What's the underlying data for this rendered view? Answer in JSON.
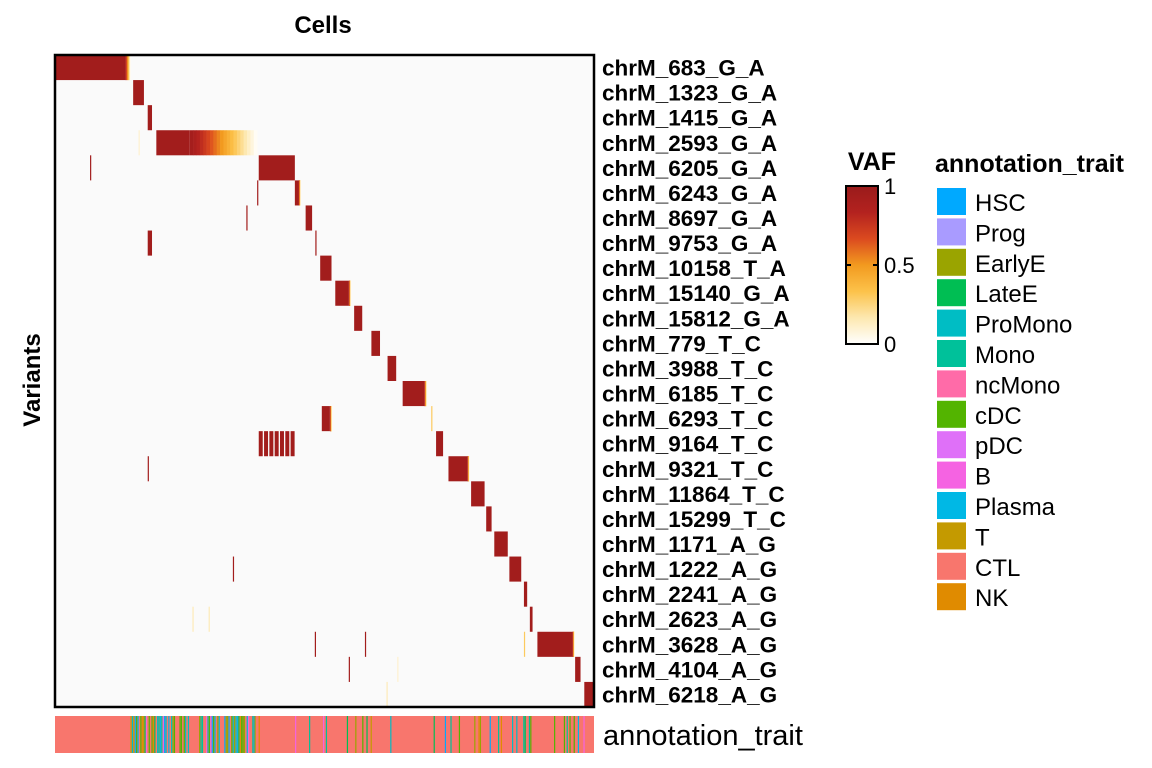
{
  "chart_data": {
    "type": "heatmap",
    "title": "Cells",
    "ylabel": "Variants",
    "rows": [
      "chrM_683_G_A",
      "chrM_1323_G_A",
      "chrM_1415_G_A",
      "chrM_2593_G_A",
      "chrM_6205_G_A",
      "chrM_6243_G_A",
      "chrM_8697_G_A",
      "chrM_9753_G_A",
      "chrM_10158_T_A",
      "chrM_15140_G_A",
      "chrM_15812_G_A",
      "chrM_779_T_C",
      "chrM_3988_T_C",
      "chrM_6185_T_C",
      "chrM_6293_T_C",
      "chrM_9164_T_C",
      "chrM_9321_T_C",
      "chrM_11864_T_C",
      "chrM_15299_T_C",
      "chrM_1171_A_G",
      "chrM_1222_A_G",
      "chrM_2241_A_G",
      "chrM_2623_A_G",
      "chrM_3628_A_G",
      "chrM_4104_A_G",
      "chrM_6218_A_G"
    ],
    "column_range": [
      0,
      1
    ],
    "cells": [
      {
        "row": 0,
        "start": 0.0,
        "end": 0.13,
        "vaf": 0.95,
        "fade": 0.01
      },
      {
        "row": 1,
        "start": 0.145,
        "end": 0.165,
        "vaf": 0.95
      },
      {
        "row": 2,
        "start": 0.172,
        "end": 0.18,
        "vaf": 0.95
      },
      {
        "row": 3,
        "start": 0.188,
        "end": 0.25,
        "vaf": 0.95,
        "fade": 0.125
      },
      {
        "row": 3,
        "start": 0.155,
        "end": 0.157,
        "vaf": 0.1
      },
      {
        "row": 4,
        "start": 0.378,
        "end": 0.445,
        "vaf": 0.95
      },
      {
        "row": 4,
        "start": 0.065,
        "end": 0.067,
        "vaf": 0.95
      },
      {
        "row": 5,
        "start": 0.445,
        "end": 0.452,
        "vaf": 0.95,
        "fade": 0.004
      },
      {
        "row": 5,
        "start": 0.375,
        "end": 0.377,
        "vaf": 0.95
      },
      {
        "row": 6,
        "start": 0.465,
        "end": 0.477,
        "vaf": 0.95
      },
      {
        "row": 6,
        "start": 0.355,
        "end": 0.357,
        "vaf": 0.95
      },
      {
        "row": 7,
        "start": 0.172,
        "end": 0.18,
        "vaf": 0.95
      },
      {
        "row": 7,
        "start": 0.483,
        "end": 0.485,
        "vaf": 0.95
      },
      {
        "row": 8,
        "start": 0.492,
        "end": 0.513,
        "vaf": 0.95
      },
      {
        "row": 9,
        "start": 0.52,
        "end": 0.545,
        "vaf": 0.95,
        "fade": 0.004
      },
      {
        "row": 10,
        "start": 0.555,
        "end": 0.57,
        "vaf": 0.95
      },
      {
        "row": 11,
        "start": 0.587,
        "end": 0.603,
        "vaf": 0.95
      },
      {
        "row": 12,
        "start": 0.617,
        "end": 0.633,
        "vaf": 0.95
      },
      {
        "row": 13,
        "start": 0.645,
        "end": 0.685,
        "vaf": 0.95,
        "fade": 0.005
      },
      {
        "row": 14,
        "start": 0.495,
        "end": 0.51,
        "vaf": 0.95,
        "fade": 0.004
      },
      {
        "row": 14,
        "start": 0.698,
        "end": 0.7,
        "vaf": 0.3
      },
      {
        "row": 15,
        "start": 0.378,
        "end": 0.447,
        "vaf": 0.95,
        "gaps": true
      },
      {
        "row": 15,
        "start": 0.707,
        "end": 0.72,
        "vaf": 0.95
      },
      {
        "row": 16,
        "start": 0.73,
        "end": 0.765,
        "vaf": 0.95,
        "fade": 0.004
      },
      {
        "row": 16,
        "start": 0.172,
        "end": 0.174,
        "vaf": 0.95
      },
      {
        "row": 17,
        "start": 0.772,
        "end": 0.797,
        "vaf": 0.95
      },
      {
        "row": 18,
        "start": 0.8,
        "end": 0.81,
        "vaf": 0.95
      },
      {
        "row": 19,
        "start": 0.815,
        "end": 0.84,
        "vaf": 0.95
      },
      {
        "row": 20,
        "start": 0.843,
        "end": 0.865,
        "vaf": 0.95
      },
      {
        "row": 20,
        "start": 0.33,
        "end": 0.332,
        "vaf": 0.95
      },
      {
        "row": 21,
        "start": 0.87,
        "end": 0.876,
        "vaf": 0.95
      },
      {
        "row": 22,
        "start": 0.881,
        "end": 0.886,
        "vaf": 0.95
      },
      {
        "row": 22,
        "start": 0.255,
        "end": 0.257,
        "vaf": 0.15
      },
      {
        "row": 22,
        "start": 0.285,
        "end": 0.287,
        "vaf": 0.15
      },
      {
        "row": 23,
        "start": 0.895,
        "end": 0.96,
        "vaf": 0.95,
        "fade": 0.004
      },
      {
        "row": 23,
        "start": 0.482,
        "end": 0.484,
        "vaf": 0.95
      },
      {
        "row": 23,
        "start": 0.575,
        "end": 0.577,
        "vaf": 0.95
      },
      {
        "row": 23,
        "start": 0.87,
        "end": 0.872,
        "vaf": 0.3
      },
      {
        "row": 24,
        "start": 0.965,
        "end": 0.975,
        "vaf": 0.95
      },
      {
        "row": 24,
        "start": 0.545,
        "end": 0.547,
        "vaf": 0.95
      },
      {
        "row": 24,
        "start": 0.635,
        "end": 0.637,
        "vaf": 0.1
      },
      {
        "row": 25,
        "start": 0.982,
        "end": 1.0,
        "vaf": 0.95
      },
      {
        "row": 25,
        "start": 0.615,
        "end": 0.617,
        "vaf": 0.15
      }
    ],
    "annotation": {
      "label": "annotation_trait",
      "base_category": "CTL",
      "dense_mix_range": [
        0.14,
        0.37
      ],
      "sparse_mix_range": [
        0.37,
        1.0
      ]
    },
    "legends": {
      "vaf": {
        "title": "VAF",
        "ticks": [
          {
            "value": 0,
            "label": "0"
          },
          {
            "value": 0.5,
            "label": "0.5"
          },
          {
            "value": 1,
            "label": "1"
          }
        ],
        "gradient": [
          "#FFFFFF",
          "#FDE8B0",
          "#FCC24A",
          "#F29A1F",
          "#DB4A1F",
          "#B3221F",
          "#9A1B1B"
        ]
      },
      "annotation_trait": {
        "title": "annotation_trait",
        "items": [
          {
            "label": "HSC",
            "color": "#00A9FF"
          },
          {
            "label": "Prog",
            "color": "#A99BFF"
          },
          {
            "label": "EarlyE",
            "color": "#9AA400"
          },
          {
            "label": "LateE",
            "color": "#00BE53"
          },
          {
            "label": "ProMono",
            "color": "#00BDC4"
          },
          {
            "label": "Mono",
            "color": "#00C19A"
          },
          {
            "label": "ncMono",
            "color": "#FF6BA8"
          },
          {
            "label": "cDC",
            "color": "#53B400"
          },
          {
            "label": "pDC",
            "color": "#DF70F8"
          },
          {
            "label": "B",
            "color": "#F563E2"
          },
          {
            "label": "Plasma",
            "color": "#00B8E5"
          },
          {
            "label": "T",
            "color": "#C49A00"
          },
          {
            "label": "CTL",
            "color": "#F8766D"
          },
          {
            "label": "NK",
            "color": "#E08B00"
          }
        ]
      }
    }
  }
}
